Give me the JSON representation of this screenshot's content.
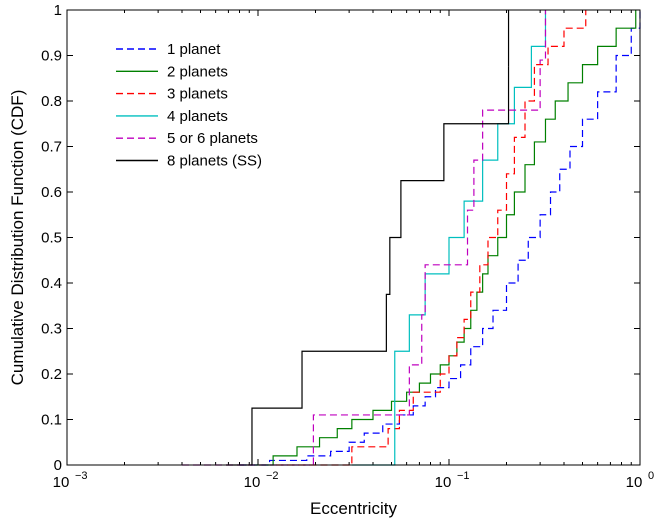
{
  "chart_data": {
    "type": "line",
    "xlabel": "Eccentricity",
    "ylabel": "Cumulative Distribution Function (CDF)",
    "xscale": "log",
    "xlim": [
      0.001,
      1
    ],
    "ylim": [
      0,
      1
    ],
    "x_ticks": [
      {
        "value": 0.001,
        "base": "10",
        "exp": "−3"
      },
      {
        "value": 0.01,
        "base": "10",
        "exp": "−2"
      },
      {
        "value": 0.1,
        "base": "10",
        "exp": "−1"
      },
      {
        "value": 1,
        "base": "10",
        "exp": "0"
      }
    ],
    "y_ticks": [
      {
        "value": 0,
        "label": "0"
      },
      {
        "value": 0.1,
        "label": "0.1"
      },
      {
        "value": 0.2,
        "label": "0.2"
      },
      {
        "value": 0.3,
        "label": "0.3"
      },
      {
        "value": 0.4,
        "label": "0.4"
      },
      {
        "value": 0.5,
        "label": "0.5"
      },
      {
        "value": 0.6,
        "label": "0.6"
      },
      {
        "value": 0.7,
        "label": "0.7"
      },
      {
        "value": 0.8,
        "label": "0.8"
      },
      {
        "value": 0.9,
        "label": "0.9"
      },
      {
        "value": 1,
        "label": "1"
      }
    ],
    "legend_position": "top-left",
    "series": [
      {
        "name": "1 planet",
        "color": "#0000ff",
        "dash": "dashed",
        "x": [
          0.008,
          0.0115,
          0.018,
          0.024,
          0.03,
          0.036,
          0.045,
          0.055,
          0.065,
          0.075,
          0.085,
          0.1,
          0.115,
          0.13,
          0.15,
          0.17,
          0.2,
          0.23,
          0.26,
          0.3,
          0.34,
          0.38,
          0.43,
          0.5,
          0.6,
          0.75,
          0.9,
          1.0
        ],
        "y": [
          0.0,
          0.01,
          0.02,
          0.03,
          0.05,
          0.07,
          0.09,
          0.11,
          0.13,
          0.15,
          0.17,
          0.19,
          0.22,
          0.26,
          0.3,
          0.34,
          0.4,
          0.45,
          0.5,
          0.55,
          0.6,
          0.65,
          0.7,
          0.76,
          0.82,
          0.9,
          0.96,
          1.0
        ]
      },
      {
        "name": "2 planets",
        "color": "#008000",
        "dash": "solid",
        "x": [
          0.0095,
          0.012,
          0.016,
          0.021,
          0.026,
          0.031,
          0.04,
          0.05,
          0.06,
          0.07,
          0.08,
          0.09,
          0.1,
          0.11,
          0.12,
          0.13,
          0.14,
          0.15,
          0.16,
          0.18,
          0.2,
          0.22,
          0.25,
          0.28,
          0.32,
          0.36,
          0.42,
          0.5,
          0.6,
          0.75,
          0.95
        ],
        "y": [
          0.0,
          0.02,
          0.04,
          0.06,
          0.08,
          0.1,
          0.12,
          0.14,
          0.16,
          0.18,
          0.2,
          0.22,
          0.24,
          0.27,
          0.3,
          0.34,
          0.38,
          0.42,
          0.46,
          0.5,
          0.55,
          0.6,
          0.66,
          0.71,
          0.76,
          0.8,
          0.84,
          0.88,
          0.92,
          0.96,
          1.0
        ]
      },
      {
        "name": "3 planets",
        "color": "#ff0000",
        "dash": "dashed",
        "x": [
          0.0125,
          0.031,
          0.048,
          0.055,
          0.065,
          0.09,
          0.1,
          0.11,
          0.12,
          0.13,
          0.145,
          0.16,
          0.18,
          0.2,
          0.22,
          0.25,
          0.28,
          0.33,
          0.4,
          0.52
        ],
        "y": [
          0.0,
          0.04,
          0.08,
          0.12,
          0.16,
          0.2,
          0.24,
          0.28,
          0.32,
          0.38,
          0.44,
          0.5,
          0.56,
          0.64,
          0.72,
          0.8,
          0.88,
          0.92,
          0.96,
          1.0
        ]
      },
      {
        "name": "4 planets",
        "color": "#00bfbf",
        "dash": "solid",
        "x": [
          0.031,
          0.052,
          0.062,
          0.075,
          0.1,
          0.12,
          0.15,
          0.18,
          0.22,
          0.27,
          0.32
        ],
        "y": [
          0.0,
          0.25,
          0.33,
          0.42,
          0.5,
          0.58,
          0.67,
          0.75,
          0.83,
          0.92,
          1.0
        ]
      },
      {
        "name": "5 or 6 planets",
        "color": "#bf00bf",
        "dash": "dashed",
        "x": [
          0.004,
          0.0195,
          0.062,
          0.072,
          0.075,
          0.125,
          0.135,
          0.15,
          0.3,
          0.32
        ],
        "y": [
          0.0,
          0.11,
          0.22,
          0.33,
          0.44,
          0.56,
          0.67,
          0.78,
          0.89,
          1.0
        ]
      },
      {
        "name": "8 planets (SS)",
        "color": "#000000",
        "dash": "solid",
        "x": [
          0.0068,
          0.0093,
          0.017,
          0.047,
          0.049,
          0.056,
          0.094,
          0.205
        ],
        "y": [
          0.0,
          0.125,
          0.25,
          0.375,
          0.5,
          0.625,
          0.75,
          0.875
        ]
      }
    ],
    "ss_final": {
      "x": 0.205,
      "y": 1.0
    }
  }
}
